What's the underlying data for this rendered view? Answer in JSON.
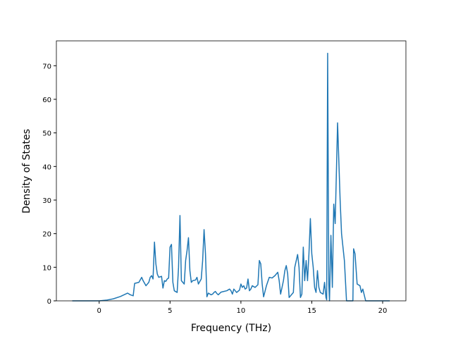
{
  "chart_data": {
    "type": "line",
    "xlabel": "Frequency (THz)",
    "ylabel": "Density of States",
    "xlim": [
      -3.02,
      21.64
    ],
    "ylim": [
      0,
      77.4
    ],
    "xticks": [
      0,
      5,
      10,
      15,
      20
    ],
    "yticks": [
      0,
      10,
      20,
      30,
      40,
      50,
      60,
      70
    ],
    "grid": false,
    "series": [
      {
        "color": "#1f77b4",
        "x": [
          -1.9,
          0,
          0.5,
          1,
          1.5,
          2,
          2.2,
          2.4,
          2.5,
          2.8,
          3,
          3.1,
          3.3,
          3.5,
          3.6,
          3.7,
          3.8,
          3.9,
          4.0,
          4.1,
          4.2,
          4.4,
          4.5,
          4.6,
          4.7,
          4.8,
          4.9,
          5.0,
          5.1,
          5.2,
          5.3,
          5.5,
          5.6,
          5.7,
          5.8,
          6.0,
          6.1,
          6.2,
          6.3,
          6.4,
          6.5,
          6.6,
          6.8,
          6.9,
          7.0,
          7.2,
          7.3,
          7.4,
          7.5,
          7.6,
          7.7,
          7.9,
          8.0,
          8.1,
          8.2,
          8.3,
          8.4,
          8.6,
          8.8,
          9.0,
          9.2,
          9.3,
          9.4,
          9.5,
          9.6,
          9.7,
          9.9,
          10.0,
          10.1,
          10.2,
          10.3,
          10.4,
          10.5,
          10.6,
          10.7,
          10.8,
          11.0,
          11.2,
          11.3,
          11.4,
          11.5,
          11.6,
          11.8,
          12.0,
          12.2,
          12.4,
          12.6,
          12.7,
          12.8,
          13.0,
          13.1,
          13.2,
          13.3,
          13.4,
          13.6,
          13.7,
          13.8,
          14.0,
          14.1,
          14.2,
          14.3,
          14.4,
          14.5,
          14.6,
          14.7,
          14.8,
          14.9,
          15.0,
          15.1,
          15.2,
          15.3,
          15.4,
          15.5,
          15.6,
          15.8,
          15.9,
          16.0,
          16.05,
          16.12,
          16.2,
          16.25,
          16.35,
          16.45,
          16.55,
          16.65,
          16.82,
          17.0,
          17.1,
          17.3,
          17.45,
          17.9,
          17.95,
          18.05,
          18.2,
          18.4,
          18.5,
          18.6,
          18.8,
          20.5
        ],
        "values": [
          0,
          0,
          0.2,
          0.6,
          1.3,
          2.3,
          1.8,
          1.5,
          5.2,
          5.5,
          7,
          6,
          4.5,
          5.5,
          7,
          7.5,
          6.5,
          17.5,
          11,
          8,
          7,
          7.3,
          3.8,
          6,
          5.8,
          6.5,
          6.8,
          16,
          16.8,
          5.5,
          3,
          2.5,
          10,
          25.4,
          6,
          5,
          12,
          15,
          18.8,
          9,
          5.5,
          6,
          6.2,
          7,
          5,
          6.5,
          12,
          21.2,
          14,
          1.2,
          2.3,
          1.8,
          2,
          2.5,
          2.8,
          2.2,
          1.8,
          2.6,
          2.8,
          3,
          3.5,
          3,
          2,
          3.5,
          3,
          2.5,
          3.2,
          5,
          4,
          4.5,
          3.5,
          3.8,
          6.5,
          3,
          3.5,
          4.5,
          4,
          4.8,
          12,
          11,
          5,
          1.2,
          4.5,
          7,
          6.8,
          7.5,
          8.5,
          6,
          2,
          6,
          9,
          10.5,
          8,
          1,
          2,
          2.5,
          10,
          13.8,
          10,
          1,
          2,
          16,
          6,
          12,
          6,
          14,
          24.5,
          14,
          10,
          4,
          2.5,
          9,
          4,
          2.5,
          2,
          5.5,
          1,
          0.3,
          73.7,
          5,
          0,
          19.5,
          4,
          28.8,
          23,
          53,
          30,
          20,
          12,
          0,
          0,
          15.5,
          14,
          5,
          4.5,
          2.5,
          3.5,
          0,
          0
        ]
      }
    ]
  }
}
